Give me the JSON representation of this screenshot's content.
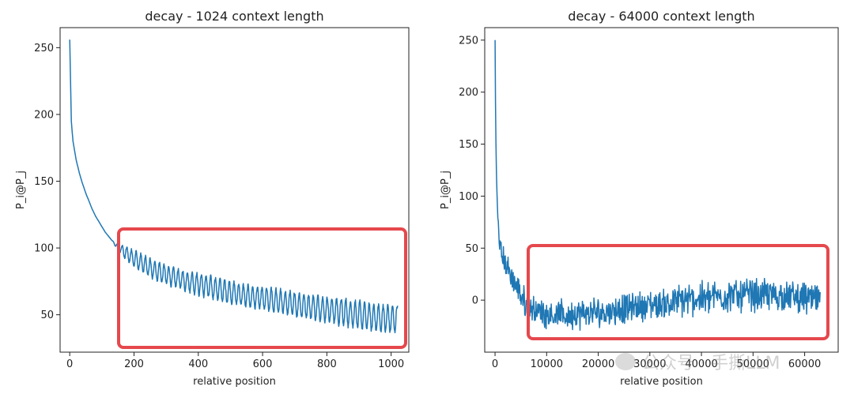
{
  "chart_data": [
    {
      "type": "line",
      "title": "decay - 1024 context length",
      "xlabel": "relative position",
      "ylabel": "P_i@P_j",
      "xlim": [
        -30,
        1055
      ],
      "ylim": [
        22,
        265
      ],
      "xticks": [
        0,
        200,
        400,
        600,
        800,
        1000
      ],
      "yticks": [
        50,
        100,
        150,
        200,
        250
      ],
      "series": [
        {
          "color": "#1f77b4",
          "x": [
            0,
            5,
            10,
            20,
            30,
            40,
            50,
            60,
            70,
            80,
            90,
            100,
            110,
            120,
            130,
            140,
            150,
            175,
            200,
            250,
            300,
            350,
            400,
            450,
            500,
            550,
            600,
            650,
            700,
            750,
            800,
            850,
            900,
            950,
            1000,
            1020
          ],
          "y": [
            256,
            195,
            180,
            166,
            156,
            148,
            141,
            135,
            129,
            124,
            120,
            116,
            112,
            109,
            106,
            103,
            101,
            96,
            92,
            85,
            80,
            76,
            73,
            70,
            67,
            64,
            62,
            60,
            58,
            56,
            54,
            52,
            50,
            48,
            47,
            47
          ],
          "oscillation_amplitude": [
            0,
            0,
            0,
            0,
            0,
            0,
            0,
            0,
            0,
            0,
            0,
            0,
            0,
            0,
            0,
            1,
            2,
            5,
            6,
            7,
            7,
            7,
            8,
            8,
            8,
            8,
            8,
            9,
            9,
            9,
            9,
            10,
            10,
            10,
            10,
            10
          ]
        }
      ],
      "highlight_box": "red rounded rectangle over 150-1020 relative position"
    },
    {
      "type": "line",
      "title": "decay - 64000 context length",
      "xlabel": "relative position",
      "ylabel": "P_i@P_j",
      "xlim": [
        -2000,
        66500
      ],
      "ylim": [
        -50,
        262
      ],
      "xticks": [
        0,
        10000,
        20000,
        30000,
        40000,
        50000,
        60000
      ],
      "yticks": [
        0,
        50,
        100,
        150,
        200,
        250
      ],
      "series": [
        {
          "color": "#1f77b4",
          "x": [
            0,
            100,
            200,
            400,
            700,
            1000,
            1500,
            2000,
            3000,
            4000,
            5000,
            6000,
            8000,
            10000,
            13000,
            16000,
            20000,
            24000,
            28000,
            32000,
            36000,
            40000,
            44000,
            48000,
            52000,
            56000,
            60000,
            63000
          ],
          "y": [
            250,
            185,
            140,
            95,
            65,
            52,
            42,
            35,
            24,
            14,
            5,
            -3,
            -10,
            -13,
            -15,
            -14,
            -12,
            -9,
            -6,
            -4,
            -1,
            2,
            4,
            5,
            5,
            4,
            2,
            0
          ],
          "noise_amplitude": [
            0,
            0,
            2,
            4,
            6,
            8,
            10,
            10,
            10,
            10,
            10,
            11,
            11,
            11,
            12,
            12,
            12,
            12,
            12,
            12,
            13,
            13,
            13,
            13,
            13,
            13,
            13,
            13
          ]
        }
      ],
      "highlight_box": "red rounded rectangle over 6000-64000 relative position"
    }
  ],
  "watermark": {
    "text": "公众号 · 手撕LLM"
  }
}
